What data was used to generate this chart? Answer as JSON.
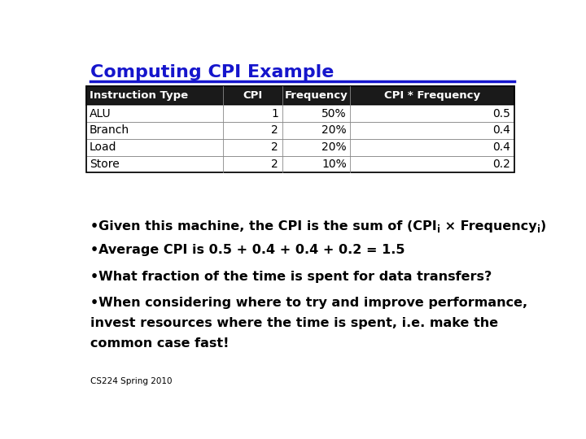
{
  "title": "Computing CPI Example",
  "title_color": "#1515CC",
  "title_underline_color": "#1515CC",
  "bg_color": "#FFFFFF",
  "table": {
    "headers": [
      "Instruction Type",
      "CPI",
      "Frequency",
      "CPI * Frequency"
    ],
    "header_bg": "#1a1a1a",
    "header_text_color": "#FFFFFF",
    "rows": [
      [
        "ALU",
        "1",
        "50%",
        "0.5"
      ],
      [
        "Branch",
        "2",
        "20%",
        "0.4"
      ],
      [
        "Load",
        "2",
        "20%",
        "0.4"
      ],
      [
        "Store",
        "2",
        "10%",
        "0.2"
      ]
    ],
    "row_text_color": "#000000",
    "border_color": "#888888",
    "col_ha": [
      "left",
      "right",
      "right",
      "right"
    ]
  },
  "footer_text": "CS224 Spring 2010",
  "bullet_fontsize": 11.5,
  "table_fontsize": 9.5,
  "footer_fontsize": 7.5
}
